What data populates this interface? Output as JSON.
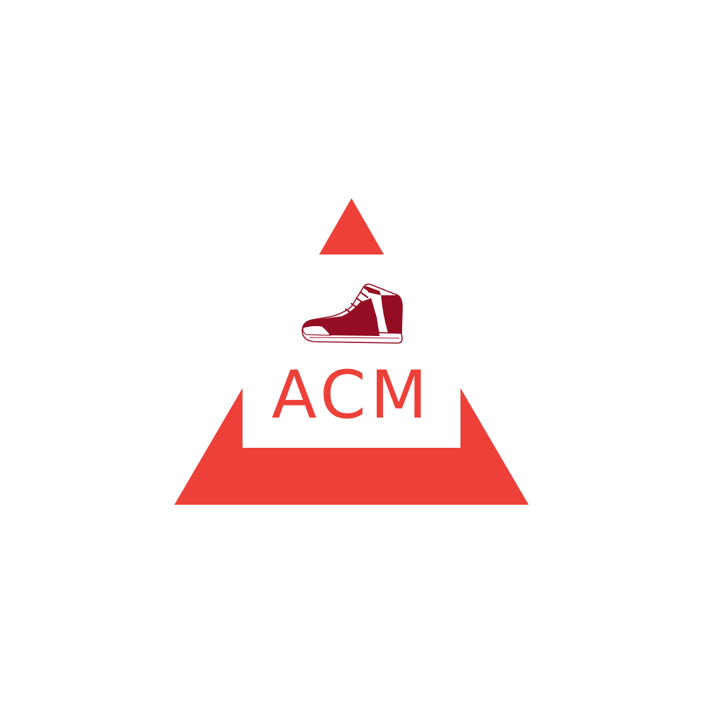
{
  "logo": {
    "wordmark": "ACM",
    "icon": "sneaker-icon",
    "colors": {
      "accent": "#ED4039",
      "shoe_dark": "#950D24",
      "shoe_outline": "#950D24",
      "background": "#FFFFFF"
    }
  }
}
